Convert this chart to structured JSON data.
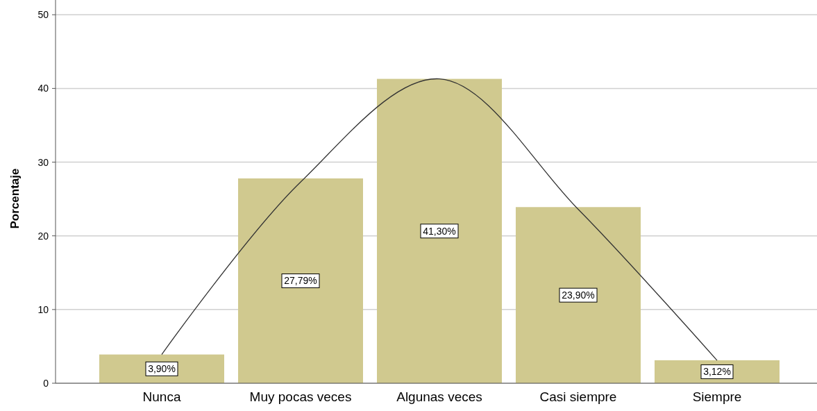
{
  "chart_data": {
    "type": "bar",
    "ylabel": "Porcentaje",
    "categories": [
      "Nunca",
      "Muy pocas veces",
      "Algunas veces",
      "Casi siempre",
      "Siempre"
    ],
    "series": [
      {
        "color": "#d0c98f",
        "values": [
          3.9,
          27.79,
          41.3,
          23.9,
          3.12
        ],
        "value_labels": [
          "3,90%",
          "27,79%",
          "41,30%",
          "23,90%",
          "3,12%"
        ]
      },
      {
        "type": "line",
        "color": "#333333",
        "values": [
          3.9,
          27.3,
          41.3,
          23.6,
          3.1
        ]
      }
    ],
    "ylim": [
      0,
      52
    ],
    "yticks": [
      0,
      10,
      20,
      30,
      40,
      50
    ],
    "grid": "y"
  }
}
